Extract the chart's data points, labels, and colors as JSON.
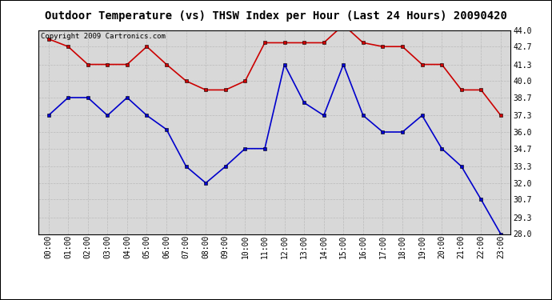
{
  "title": "Outdoor Temperature (vs) THSW Index per Hour (Last 24 Hours) 20090420",
  "copyright_text": "Copyright 2009 Cartronics.com",
  "hours": [
    "00:00",
    "01:00",
    "02:00",
    "03:00",
    "04:00",
    "05:00",
    "06:00",
    "07:00",
    "08:00",
    "09:00",
    "10:00",
    "11:00",
    "12:00",
    "13:00",
    "14:00",
    "15:00",
    "16:00",
    "17:00",
    "18:00",
    "19:00",
    "20:00",
    "21:00",
    "22:00",
    "23:00"
  ],
  "red_data": [
    43.3,
    42.7,
    41.3,
    41.3,
    41.3,
    42.7,
    41.3,
    40.0,
    39.3,
    39.3,
    40.0,
    43.0,
    43.0,
    43.0,
    43.0,
    44.4,
    43.0,
    42.7,
    42.7,
    41.3,
    41.3,
    39.3,
    39.3,
    37.3
  ],
  "blue_data": [
    37.3,
    38.7,
    38.7,
    37.3,
    38.7,
    37.3,
    36.2,
    33.3,
    32.0,
    33.3,
    34.7,
    34.7,
    41.3,
    38.3,
    37.3,
    41.3,
    37.3,
    36.0,
    36.0,
    37.3,
    34.7,
    33.3,
    30.7,
    28.0
  ],
  "ylim": [
    28.0,
    44.0
  ],
  "yticks": [
    28.0,
    29.3,
    30.7,
    32.0,
    33.3,
    34.7,
    36.0,
    37.3,
    38.7,
    40.0,
    41.3,
    42.7,
    44.0
  ],
  "red_color": "#cc0000",
  "blue_color": "#0000cc",
  "bg_color": "#ffffff",
  "plot_bg_color": "#d8d8d8",
  "grid_color": "#bbbbbb",
  "title_fontsize": 10,
  "axis_fontsize": 7,
  "copyright_fontsize": 6.5
}
